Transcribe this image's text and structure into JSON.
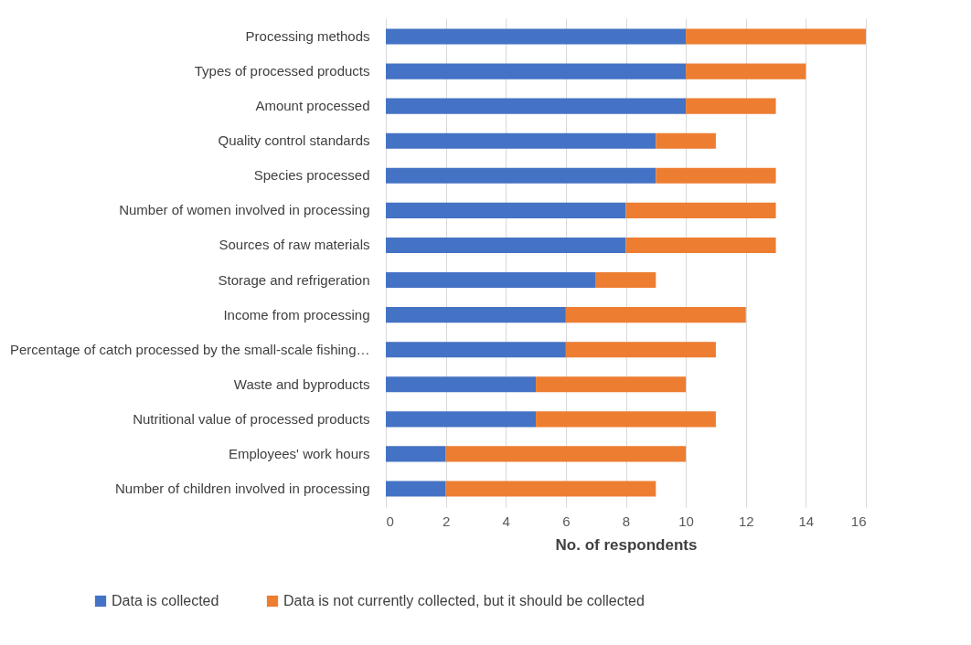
{
  "chart_data": {
    "type": "bar",
    "orientation": "horizontal",
    "stacked": true,
    "xlabel": "No. of respondents",
    "categories": [
      "Processing methods",
      "Types of processed products",
      "Amount processed",
      "Quality control standards",
      "Species processed",
      "Number of women involved in processing",
      "Sources of raw materials",
      "Storage and refrigeration",
      "Income from processing",
      "Percentage of catch processed by the small-scale fishing…",
      "Waste and byproducts",
      "Nutritional value of processed products",
      "Employees' work hours",
      "Number of children involved in processing"
    ],
    "series": [
      {
        "name": "Data is collected",
        "color": "#4472c4",
        "values": [
          10,
          10,
          10,
          9,
          9,
          8,
          8,
          7,
          6,
          6,
          5,
          5,
          2,
          2
        ]
      },
      {
        "name": "Data is not currently collected, but it should be collected",
        "color": "#ed7d31",
        "values": [
          6,
          4,
          3,
          2,
          4,
          5,
          5,
          2,
          6,
          5,
          5,
          6,
          8,
          7
        ]
      }
    ],
    "xlim": [
      0,
      16
    ],
    "xticks": [
      0,
      2,
      4,
      6,
      8,
      10,
      12,
      14,
      16
    ],
    "grid": "x",
    "legend": "bottom"
  }
}
